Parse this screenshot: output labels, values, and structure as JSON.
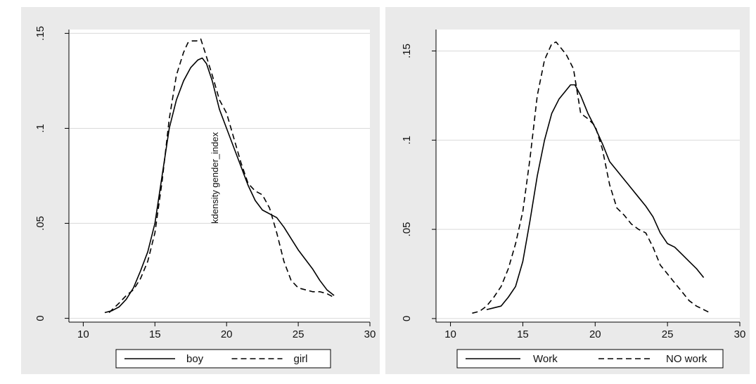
{
  "colors": {
    "outer_background": "#eaeaea",
    "plot_background": "#ffffff",
    "grid": "#d9d9d9",
    "line": "#000000"
  },
  "chart_data": [
    {
      "type": "line",
      "title": "",
      "xlabel": "",
      "ylabel": "",
      "xlim": [
        9,
        30
      ],
      "ylim": [
        -0.002,
        0.152
      ],
      "xticks": [
        10,
        15,
        20,
        25,
        30
      ],
      "yticks": [
        0,
        0.05,
        0.1,
        0.15
      ],
      "xtick_labels": [
        "10",
        "15",
        "20",
        "25",
        "30"
      ],
      "ytick_labels": [
        "0",
        ".05",
        ".1",
        ".15"
      ],
      "grid": "horizontal",
      "legend_position": "bottom",
      "annotation": "kdensity gender_index",
      "series": [
        {
          "name": "boy",
          "style": "solid",
          "x": [
            11.5,
            12.0,
            12.5,
            13.0,
            13.5,
            14.0,
            14.5,
            15.0,
            15.5,
            16.0,
            16.5,
            17.0,
            17.5,
            18.0,
            18.3,
            18.6,
            19.0,
            19.5,
            20.0,
            20.5,
            21.0,
            21.5,
            22.0,
            22.5,
            23.0,
            23.5,
            24.0,
            24.5,
            25.0,
            25.5,
            26.0,
            26.5,
            27.0,
            27.5
          ],
          "y": [
            0.003,
            0.004,
            0.006,
            0.01,
            0.016,
            0.025,
            0.035,
            0.05,
            0.075,
            0.1,
            0.115,
            0.125,
            0.132,
            0.136,
            0.137,
            0.134,
            0.125,
            0.11,
            0.1,
            0.09,
            0.08,
            0.07,
            0.062,
            0.057,
            0.055,
            0.053,
            0.048,
            0.042,
            0.036,
            0.031,
            0.026,
            0.02,
            0.015,
            0.012
          ]
        },
        {
          "name": "girl",
          "style": "dashed",
          "x": [
            11.8,
            12.5,
            13.0,
            13.5,
            14.0,
            14.5,
            15.0,
            15.5,
            16.0,
            16.5,
            17.0,
            17.3,
            17.6,
            17.9,
            18.2,
            18.5,
            19.0,
            19.5,
            20.0,
            20.5,
            21.0,
            21.5,
            22.0,
            22.5,
            23.0,
            23.5,
            24.0,
            24.5,
            25.0,
            25.5,
            26.0,
            26.5,
            27.0,
            27.5
          ],
          "y": [
            0.003,
            0.008,
            0.012,
            0.015,
            0.021,
            0.03,
            0.045,
            0.072,
            0.105,
            0.128,
            0.14,
            0.145,
            0.146,
            0.146,
            0.147,
            0.14,
            0.128,
            0.115,
            0.108,
            0.095,
            0.082,
            0.071,
            0.067,
            0.065,
            0.058,
            0.045,
            0.03,
            0.02,
            0.016,
            0.015,
            0.014,
            0.014,
            0.013,
            0.011
          ]
        }
      ]
    },
    {
      "type": "line",
      "title": "",
      "xlabel": "",
      "ylabel": "",
      "xlim": [
        9,
        30
      ],
      "ylim": [
        -0.002,
        0.162
      ],
      "xticks": [
        10,
        15,
        20,
        25,
        30
      ],
      "yticks": [
        0,
        0.05,
        0.1,
        0.15
      ],
      "xtick_labels": [
        "10",
        "15",
        "20",
        "25",
        "30"
      ],
      "ytick_labels": [
        "0",
        ".05",
        ".1",
        ".15"
      ],
      "grid": "horizontal",
      "legend_position": "bottom",
      "series": [
        {
          "name": "Work",
          "style": "solid",
          "x": [
            12.5,
            13.0,
            13.5,
            14.0,
            14.5,
            15.0,
            15.5,
            16.0,
            16.5,
            17.0,
            17.5,
            18.0,
            18.3,
            18.6,
            19.0,
            19.5,
            20.0,
            20.5,
            21.0,
            21.5,
            22.0,
            22.5,
            23.0,
            23.5,
            24.0,
            24.5,
            25.0,
            25.5,
            26.0,
            26.5,
            27.0,
            27.5
          ],
          "y": [
            0.005,
            0.006,
            0.007,
            0.012,
            0.018,
            0.032,
            0.055,
            0.08,
            0.1,
            0.115,
            0.123,
            0.128,
            0.131,
            0.131,
            0.125,
            0.115,
            0.107,
            0.098,
            0.088,
            0.083,
            0.078,
            0.073,
            0.068,
            0.063,
            0.057,
            0.048,
            0.042,
            0.04,
            0.036,
            0.032,
            0.028,
            0.023
          ]
        },
        {
          "name": "NO work",
          "style": "dashed",
          "x": [
            11.5,
            12.0,
            12.5,
            13.0,
            13.5,
            14.0,
            14.5,
            15.0,
            15.5,
            16.0,
            16.5,
            17.0,
            17.3,
            17.6,
            18.0,
            18.5,
            19.0,
            19.5,
            20.0,
            20.5,
            21.0,
            21.5,
            22.0,
            22.5,
            23.0,
            23.5,
            24.0,
            24.5,
            25.0,
            25.5,
            26.0,
            26.5,
            27.0,
            27.5,
            28.0
          ],
          "y": [
            0.003,
            0.004,
            0.007,
            0.012,
            0.018,
            0.028,
            0.042,
            0.06,
            0.09,
            0.125,
            0.145,
            0.154,
            0.155,
            0.152,
            0.148,
            0.14,
            0.115,
            0.112,
            0.108,
            0.095,
            0.075,
            0.062,
            0.058,
            0.053,
            0.05,
            0.048,
            0.04,
            0.03,
            0.025,
            0.02,
            0.015,
            0.01,
            0.007,
            0.005,
            0.003
          ]
        }
      ]
    }
  ]
}
